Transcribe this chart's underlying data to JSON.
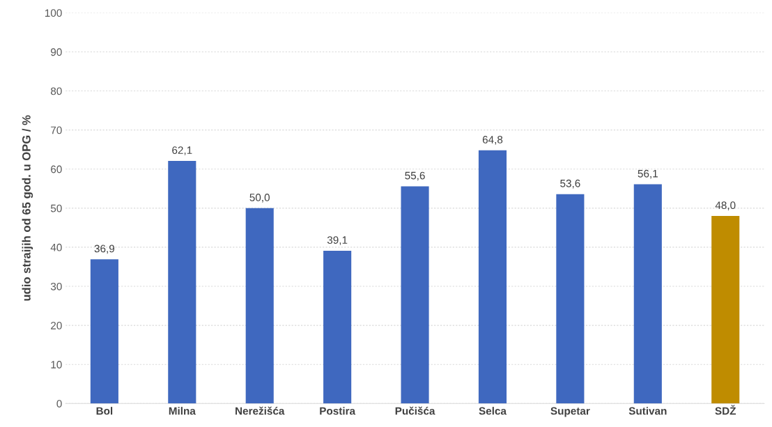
{
  "chart_data": {
    "type": "bar",
    "ylabel": "udio straijih od 65 god. u OPG / %",
    "categories": [
      "Bol",
      "Milna",
      "Nerežišća",
      "Postira",
      "Pučišća",
      "Selca",
      "Supetar",
      "Sutivan",
      "SDŽ"
    ],
    "values": [
      36.9,
      62.1,
      50.0,
      39.1,
      55.6,
      64.8,
      53.6,
      56.1,
      48.0
    ],
    "value_labels": [
      "36,9",
      "62,1",
      "50,0",
      "39,1",
      "55,6",
      "64,8",
      "53,6",
      "56,1",
      "48,0"
    ],
    "colors": [
      "#3f68bf",
      "#3f68bf",
      "#3f68bf",
      "#3f68bf",
      "#3f68bf",
      "#3f68bf",
      "#3f68bf",
      "#3f68bf",
      "#bf8c00"
    ],
    "ylim": [
      0,
      100
    ],
    "yticks": [
      0,
      10,
      20,
      30,
      40,
      50,
      60,
      70,
      80,
      90,
      100
    ],
    "grid": "y"
  }
}
